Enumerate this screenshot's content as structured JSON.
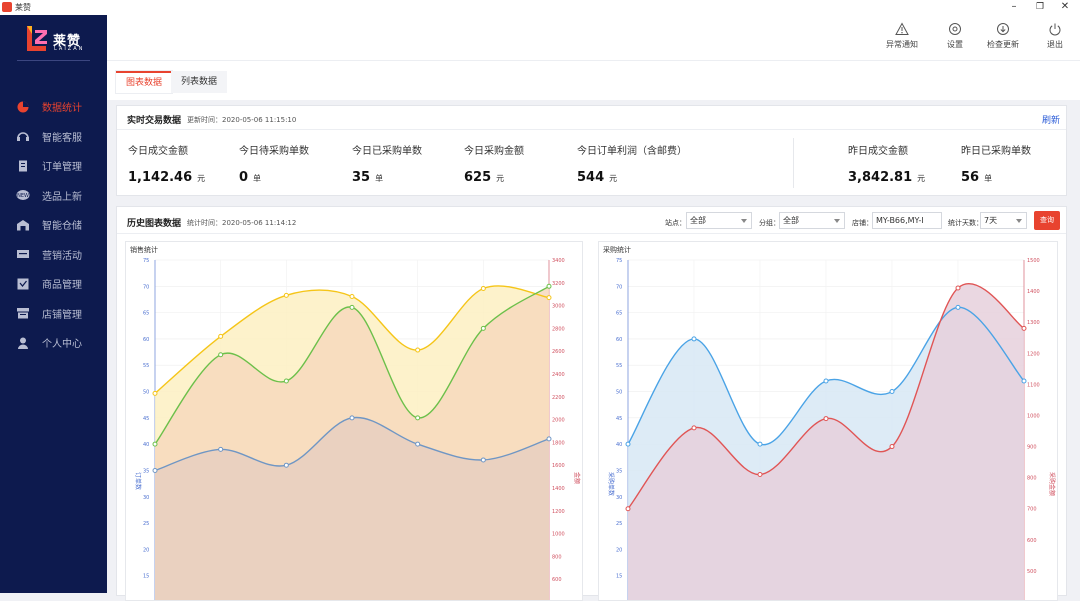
{
  "window": {
    "title": "莱赞",
    "controls": [
      "–",
      "❐",
      "✕"
    ]
  },
  "logo": {
    "text": "莱赞",
    "sub": "LAIZAN"
  },
  "sidebar": {
    "items": [
      {
        "label": "数据统计",
        "icon": "pie-chart-icon",
        "active": true
      },
      {
        "label": "智能客服",
        "icon": "headset-icon",
        "active": false
      },
      {
        "label": "订单管理",
        "icon": "order-icon",
        "active": false
      },
      {
        "label": "选品上新",
        "icon": "new-badge-icon",
        "active": false
      },
      {
        "label": "智能仓储",
        "icon": "warehouse-icon",
        "active": false
      },
      {
        "label": "营销活动",
        "icon": "campaign-icon",
        "active": false
      },
      {
        "label": "商品管理",
        "icon": "product-icon",
        "active": false
      },
      {
        "label": "店铺管理",
        "icon": "store-icon",
        "active": false
      },
      {
        "label": "个人中心",
        "icon": "user-icon",
        "active": false
      }
    ]
  },
  "topbar": {
    "actions": [
      {
        "label": "异常通知",
        "icon": "warning-icon"
      },
      {
        "label": "设置",
        "icon": "gear-icon"
      },
      {
        "label": "检查更新",
        "icon": "download-icon"
      },
      {
        "label": "退出",
        "icon": "power-icon"
      }
    ]
  },
  "tabs": [
    {
      "label": "图表数据",
      "active": true
    },
    {
      "label": "列表数据",
      "active": false
    }
  ],
  "realtime": {
    "title": "实时交易数据",
    "updated": "更新时间：2020-05-06 11:15:10",
    "refresh": "刷新",
    "stats": [
      {
        "label": "今日成交金额",
        "value": "1,142.46",
        "unit": "元"
      },
      {
        "label": "今日待采购单数",
        "value": "0",
        "unit": "单"
      },
      {
        "label": "今日已采购单数",
        "value": "35",
        "unit": "单"
      },
      {
        "label": "今日采购金额",
        "value": "625",
        "unit": "元"
      },
      {
        "label": "今日订单利润（含邮费）",
        "value": "544",
        "unit": "元"
      },
      {
        "label": "昨日成交金额",
        "value": "3,842.81",
        "unit": "元"
      },
      {
        "label": "昨日已采购单数",
        "value": "56",
        "unit": "单"
      }
    ]
  },
  "history": {
    "title": "历史图表数据",
    "stat_time": "统计时间：2020-05-06 11:14:12",
    "filters": [
      {
        "label": "站点：",
        "value": "全部"
      },
      {
        "label": "分组：",
        "value": "全部"
      },
      {
        "label": "店铺：",
        "value": "MY-B66,MY-I"
      },
      {
        "label": "统计天数：",
        "value": "7天"
      }
    ],
    "query_button": "查询"
  },
  "colors": {
    "sidebar_bg": "#0d1a4e",
    "accent": "#e8432f",
    "yellow": "#f5c518",
    "green": "#6cc04a",
    "steel_blue": "#6f96c4",
    "blue": "#4aa3e6",
    "red": "#e05555"
  },
  "chart_data": [
    {
      "type": "line",
      "title": "销售统计",
      "ylabel_left": "订单数",
      "ylabel_right": "金额",
      "left_ticks": [
        15,
        20,
        25,
        30,
        35,
        40,
        45,
        50,
        55,
        60,
        65,
        70,
        75
      ],
      "right_ticks": [
        600,
        800,
        1000,
        1200,
        1400,
        1600,
        1800,
        2000,
        2200,
        2400,
        2600,
        2800,
        3000,
        3200,
        3400
      ],
      "left_ylim": [
        10,
        75
      ],
      "right_ylim": [
        400,
        3400
      ],
      "series": [
        {
          "axis": "right",
          "color": "#f5c518",
          "fill": "#fdf0c2",
          "values": [
            2230,
            2730,
            3090,
            3080,
            2610,
            3150,
            3070
          ]
        },
        {
          "axis": "left",
          "color": "#6cc04a",
          "fill": "#f7d9bd",
          "values": [
            40,
            57,
            52,
            66,
            45,
            62,
            70
          ]
        },
        {
          "axis": "left",
          "color": "#6f96c4",
          "fill": "#e8cfbf",
          "values": [
            35,
            39,
            36,
            45,
            40,
            37,
            41
          ]
        }
      ]
    },
    {
      "type": "line",
      "title": "采购统计",
      "ylabel_left": "采购单数",
      "ylabel_right": "采购金额",
      "left_ticks": [
        15,
        20,
        25,
        30,
        35,
        40,
        45,
        50,
        55,
        60,
        65,
        70,
        75
      ],
      "right_ticks": [
        500,
        600,
        700,
        800,
        900,
        1000,
        1100,
        1200,
        1300,
        1400,
        1500
      ],
      "left_ylim": [
        10,
        75
      ],
      "right_ylim": [
        400,
        1500
      ],
      "series": [
        {
          "axis": "left",
          "color": "#4aa3e6",
          "fill": "#d7e7f5",
          "values": [
            40,
            60,
            40,
            52,
            50,
            66,
            52
          ]
        },
        {
          "axis": "right",
          "color": "#e05555",
          "fill": "#e6d0dc",
          "values": [
            700,
            960,
            810,
            990,
            900,
            1410,
            1280
          ]
        }
      ]
    }
  ]
}
